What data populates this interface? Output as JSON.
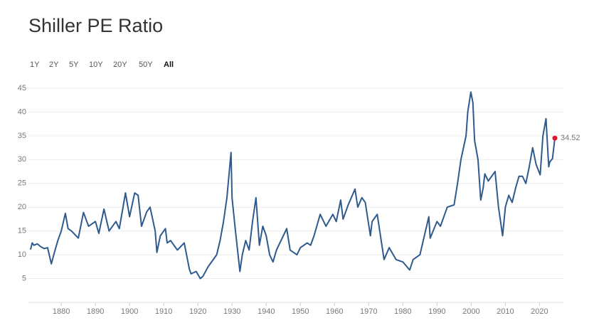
{
  "chart_data": {
    "type": "line",
    "title": "Shiller PE Ratio",
    "range_buttons": [
      {
        "label": "1Y",
        "active": false
      },
      {
        "label": "2Y",
        "active": false
      },
      {
        "label": "5Y",
        "active": false
      },
      {
        "label": "10Y",
        "active": false
      },
      {
        "label": "20Y",
        "active": false
      },
      {
        "label": "50Y",
        "active": false
      },
      {
        "label": "All",
        "active": true
      }
    ],
    "xlim": [
      1870.4,
      2027
    ],
    "xticks": [
      1880,
      1890,
      1900,
      1910,
      1920,
      1930,
      1940,
      1950,
      1960,
      1970,
      1980,
      1990,
      2000,
      2010,
      2020
    ],
    "ylim": [
      0,
      45
    ],
    "yticks": [
      5,
      10,
      15,
      20,
      25,
      30,
      35,
      40,
      45
    ],
    "grid": true,
    "last_point_color": "#e0162b",
    "series": [
      {
        "name": "Shiller PE Ratio",
        "color": "#2e5a8e",
        "x": [
          1871,
          1871.5,
          1872,
          1873,
          1874,
          1875,
          1876,
          1877.1,
          1878,
          1879,
          1880,
          1881.2,
          1882,
          1883,
          1885,
          1886.5,
          1888,
          1890,
          1891,
          1892.5,
          1894,
          1896,
          1897,
          1898.8,
          1900,
          1901.5,
          1902.5,
          1903.5,
          1905,
          1906,
          1907.5,
          1908,
          1909,
          1910.5,
          1911,
          1912,
          1914,
          1916,
          1917.5,
          1918,
          1919.5,
          1920.7,
          1921.5,
          1923,
          1924,
          1925.5,
          1926.5,
          1927.5,
          1928.5,
          1929,
          1929.7,
          1930,
          1931,
          1932.3,
          1933,
          1934,
          1935,
          1936,
          1937,
          1938,
          1939,
          1940,
          1941,
          1942,
          1943,
          1944,
          1946,
          1947,
          1948,
          1949,
          1950,
          1952,
          1953,
          1954,
          1955.8,
          1957.5,
          1959.5,
          1960.5,
          1961.8,
          1962.5,
          1964,
          1966,
          1966.8,
          1968,
          1969,
          1970.5,
          1971,
          1972.5,
          1974.5,
          1976,
          1978,
          1980,
          1982,
          1983,
          1985,
          1987.6,
          1988,
          1990,
          1991,
          1993,
          1995,
          1996,
          1997,
          1998.5,
          1999,
          1999.9,
          2000.5,
          2001,
          2002,
          2002.8,
          2003.5,
          2004,
          2005,
          2006,
          2007,
          2008,
          2009.2,
          2010,
          2011,
          2012,
          2013,
          2014,
          2015,
          2016,
          2017,
          2018,
          2019,
          2020.2,
          2021,
          2021.9,
          2022.7,
          2023,
          2023.8,
          2024.5
        ],
        "values": [
          11.1,
          12.5,
          12.0,
          12.3,
          11.7,
          11.3,
          11.5,
          8.1,
          10.5,
          13,
          15,
          18.7,
          15.5,
          15,
          13.5,
          18.9,
          16,
          17,
          14.5,
          19.6,
          15,
          17,
          15.5,
          23,
          18,
          23,
          22.5,
          16,
          19,
          20,
          15,
          10.5,
          14,
          15.5,
          12.5,
          13,
          11,
          12.5,
          7,
          6,
          6.5,
          5,
          5.5,
          7.5,
          8.5,
          10,
          13,
          17,
          22,
          26,
          31.5,
          22,
          15,
          6.5,
          10,
          13,
          11,
          17,
          22,
          12,
          16,
          14,
          10,
          8.5,
          11,
          12.5,
          15.5,
          11,
          10.5,
          10,
          11.5,
          12.5,
          12,
          14,
          18.5,
          16,
          18.5,
          17,
          21.5,
          17.5,
          20.5,
          23.8,
          20,
          22,
          21,
          14,
          17,
          18.5,
          9,
          11.5,
          9,
          8.5,
          6.8,
          9,
          10,
          18,
          13.5,
          17,
          16,
          20,
          20.5,
          25,
          30,
          35,
          40,
          44.2,
          42,
          34,
          30,
          21.5,
          24,
          27,
          25.5,
          26.5,
          27.5,
          20,
          14,
          20,
          22.5,
          21,
          24,
          26.5,
          26.5,
          25,
          28.5,
          32.5,
          29,
          26.8,
          35,
          38.6,
          28.5,
          29.5,
          30.2,
          34.52
        ]
      }
    ]
  }
}
